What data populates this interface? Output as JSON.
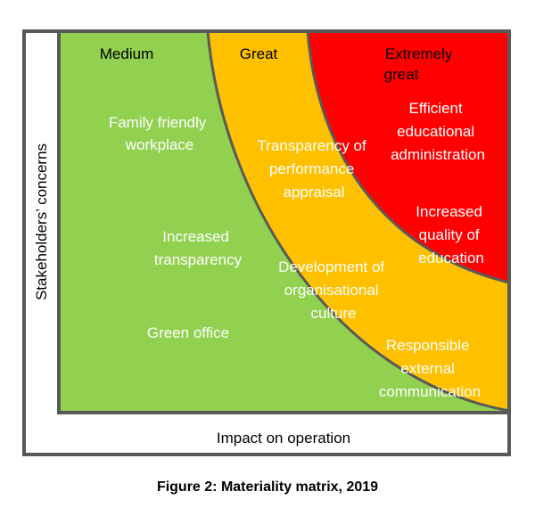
{
  "colors": {
    "medium": "#92d050",
    "great": "#ffc000",
    "extremely_great": "#ff0000",
    "border": "#595959"
  },
  "zones": {
    "medium": {
      "title": "Medium",
      "items": [
        [
          "Family friendly",
          "workplace"
        ],
        [
          "Increased",
          "transparency"
        ],
        [
          "Green office"
        ]
      ]
    },
    "great": {
      "title": "Great",
      "items": [
        [
          "Transparency of",
          "performance",
          "appraisal"
        ],
        [
          "Development of",
          "organisational",
          "culture"
        ],
        [
          "Responsible",
          "external",
          "communication"
        ]
      ]
    },
    "extremely_great": {
      "title": [
        "Extremely",
        "great"
      ],
      "items": [
        [
          "Efficient",
          "educational",
          "administration"
        ],
        [
          "Increased",
          "quality of",
          "education"
        ]
      ]
    }
  },
  "axes": {
    "x_label": "Impact on operation",
    "y_label": "Stakeholders’ concerns"
  },
  "caption": "Figure 2: Materiality matrix, 2019"
}
